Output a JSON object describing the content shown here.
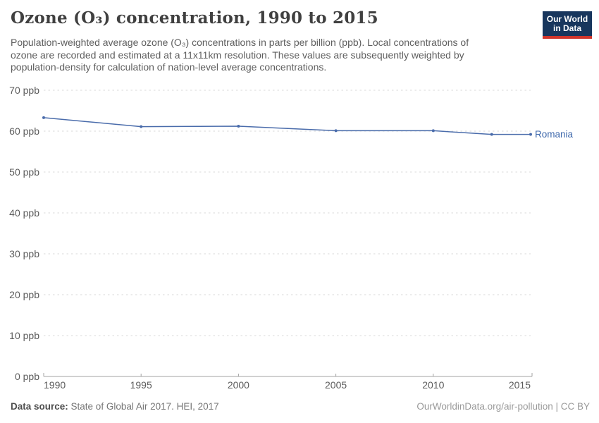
{
  "chart_data": {
    "type": "line",
    "title": "Ozone (O₃) concentration, 1990 to 2015",
    "subtitle_lines": [
      "Population-weighted average ozone (O₃) concentrations in parts per billion (ppb). Local concentrations of",
      "ozone are recorded and estimated at a 11x11km resolution. These values are subsequently weighted by",
      "population-density for calculation of nation-level average concentrations."
    ],
    "x": [
      1990,
      1995,
      2000,
      2005,
      2010,
      2013,
      2015
    ],
    "series": [
      {
        "name": "Romania",
        "color": "#4a6cab",
        "values": [
          63.3,
          61.1,
          61.2,
          60.1,
          60.1,
          59.2,
          59.2
        ]
      }
    ],
    "xlim": [
      1990,
      2015
    ],
    "ylim": [
      0,
      70
    ],
    "yticks": [
      0,
      10,
      20,
      30,
      40,
      50,
      60,
      70
    ],
    "ytick_suffix": " ppb",
    "xticks": [
      1990,
      1995,
      2000,
      2005,
      2010,
      2015
    ],
    "grid": "horizontal-dashed",
    "legend_position": "end-of-line-label",
    "end_label": "Romania"
  },
  "header": {
    "logo": {
      "line1": "Our World",
      "line2": "in Data"
    }
  },
  "footer": {
    "source_label": "Data source:",
    "source_text": " State of Global Air 2017. HEI, 2017",
    "right_text": "OurWorldinData.org/air-pollution | CC BY"
  },
  "colors": {
    "line": "#4a6cab",
    "end_label_text": "#3d67ab",
    "grid": "#d9d9d9",
    "axis": "#a3a3a3",
    "tick_text": "#5c5c5c",
    "logo_bg": "#18365d",
    "logo_stripe": "#d1352b"
  }
}
